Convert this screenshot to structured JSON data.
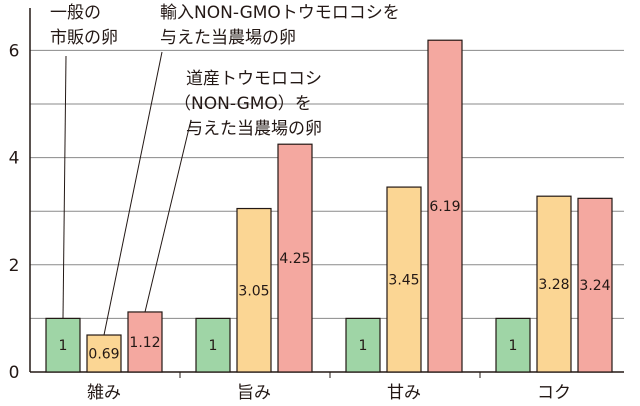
{
  "chart_data": {
    "type": "bar",
    "title": "",
    "xlabel": "",
    "ylabel": "",
    "ylim": [
      0,
      6.5
    ],
    "yticks": [
      0,
      2,
      4,
      6
    ],
    "grid": true,
    "categories": [
      "雑み",
      "旨み",
      "甘み",
      "コク"
    ],
    "series": [
      {
        "name": "一般の市販の卵",
        "values": [
          1,
          1,
          1,
          1
        ],
        "labels": [
          "1",
          "1",
          "1",
          "1"
        ],
        "color": "#9fd5a6"
      },
      {
        "name": "輸入NON-GMOトウモロコシを与えた当農場の卵",
        "values": [
          0.69,
          3.05,
          3.45,
          3.28
        ],
        "labels": [
          "0.69",
          "3.05",
          "3.45",
          "3.28"
        ],
        "color": "#fbd694"
      },
      {
        "name": "道産トウモロコシ（NON-GMO）を与えた当農場の卵",
        "values": [
          1.12,
          4.25,
          6.19,
          3.24
        ],
        "labels": [
          "1.12",
          "4.25",
          "6.19",
          "3.24"
        ],
        "color": "#f4a8a0"
      }
    ],
    "annotations": [
      {
        "series": 0,
        "lines": [
          "一般の",
          "市販の卵"
        ]
      },
      {
        "series": 1,
        "lines": [
          "輸入NON-GMOトウモロコシを",
          "与えた当農場の卵"
        ]
      },
      {
        "series": 2,
        "lines": [
          "道産トウモロコシ",
          "（NON-GMO）を",
          "与えた当農場の卵"
        ]
      }
    ]
  }
}
